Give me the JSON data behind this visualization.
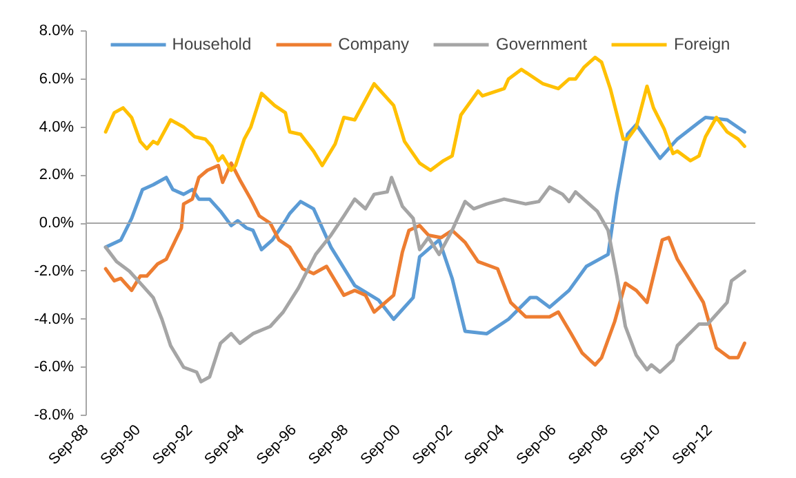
{
  "chart_data": {
    "type": "line",
    "legend": "top",
    "grid": false,
    "line_style": "solid",
    "marker": "none",
    "xlim": [
      "1988-09",
      "2014-06"
    ],
    "xticks": [
      {
        "value": "1988-09",
        "label": "Sep-88"
      },
      {
        "value": "1990-09",
        "label": "Sep-90"
      },
      {
        "value": "1992-09",
        "label": "Sep-92"
      },
      {
        "value": "1994-09",
        "label": "Sep-94"
      },
      {
        "value": "1996-09",
        "label": "Sep-96"
      },
      {
        "value": "1998-09",
        "label": "Sep-98"
      },
      {
        "value": "2000-09",
        "label": "Sep-00"
      },
      {
        "value": "2002-09",
        "label": "Sep-02"
      },
      {
        "value": "2004-09",
        "label": "Sep-04"
      },
      {
        "value": "2006-09",
        "label": "Sep-06"
      },
      {
        "value": "2008-09",
        "label": "Sep-08"
      },
      {
        "value": "2010-09",
        "label": "Sep-10"
      },
      {
        "value": "2012-09",
        "label": "Sep-12"
      }
    ],
    "ylim": [
      -8,
      8
    ],
    "yticks": [
      {
        "value": -8,
        "label": "-8.0%"
      },
      {
        "value": -6,
        "label": "-6.0%"
      },
      {
        "value": -4,
        "label": "-4.0%"
      },
      {
        "value": -2,
        "label": "-2.0%"
      },
      {
        "value": 0,
        "label": "0.0%"
      },
      {
        "value": 2,
        "label": "2.0%"
      },
      {
        "value": 4,
        "label": "4.0%"
      },
      {
        "value": 6,
        "label": "6.0%"
      },
      {
        "value": 8,
        "label": "8.0%"
      }
    ],
    "ref_lines": [
      {
        "axis": "y",
        "value": 0,
        "color": "#a6a6a6"
      }
    ],
    "series": [
      {
        "name": "Household",
        "color": "#5b9bd5",
        "x": [
          "1989-06",
          "1990-01",
          "1990-06",
          "1990-11",
          "1991-04",
          "1991-10",
          "1992-01",
          "1992-06",
          "1992-10",
          "1993-01",
          "1993-06",
          "1993-11",
          "1994-04",
          "1994-07",
          "1994-11",
          "1995-02",
          "1995-06",
          "1995-11",
          "1996-05",
          "1996-07",
          "1996-12",
          "1997-06",
          "1998-02",
          "1999-01",
          "1999-12",
          "2000-07",
          "2001-04",
          "2001-07",
          "2002-04",
          "2002-10",
          "2003-04",
          "2004-02",
          "2004-12",
          "2005-10",
          "2006-01",
          "2006-07",
          "2007-04",
          "2007-12",
          "2008-10",
          "2009-02",
          "2009-07",
          "2009-11",
          "2010-10",
          "2011-06",
          "2012-04",
          "2012-07",
          "2013-05",
          "2014-01"
        ],
        "values": [
          -1.0,
          -0.7,
          0.2,
          1.4,
          1.6,
          1.9,
          1.4,
          1.2,
          1.4,
          1.0,
          1.0,
          0.5,
          -0.1,
          0.1,
          -0.2,
          -0.3,
          -1.1,
          -0.7,
          0.1,
          0.4,
          0.9,
          0.6,
          -1.0,
          -2.6,
          -3.2,
          -4.0,
          -3.1,
          -1.4,
          -0.7,
          -2.3,
          -4.5,
          -4.6,
          -4.0,
          -3.1,
          -3.1,
          -3.5,
          -2.8,
          -1.8,
          -1.3,
          1.2,
          3.7,
          4.1,
          2.7,
          3.5,
          4.2,
          4.4,
          4.3,
          3.8
        ]
      },
      {
        "name": "Company",
        "color": "#ed7d31",
        "x": [
          "1989-06",
          "1989-10",
          "1990-01",
          "1990-06",
          "1990-10",
          "1991-01",
          "1991-06",
          "1991-10",
          "1992-05",
          "1992-06",
          "1992-10",
          "1993-01",
          "1993-05",
          "1993-10",
          "1993-12",
          "1994-04",
          "1994-08",
          "1995-01",
          "1995-05",
          "1995-10",
          "1996-02",
          "1996-07",
          "1997-01",
          "1997-06",
          "1997-12",
          "1998-08",
          "1999-01",
          "1999-06",
          "1999-10",
          "2000-07",
          "2000-11",
          "2001-02",
          "2001-07",
          "2001-11",
          "2002-05",
          "2002-10",
          "2003-04",
          "2003-10",
          "2004-07",
          "2005-01",
          "2005-08",
          "2006-07",
          "2006-11",
          "2007-05",
          "2007-10",
          "2008-04",
          "2008-07",
          "2009-01",
          "2009-06",
          "2009-11",
          "2010-04",
          "2010-11",
          "2011-02",
          "2011-06",
          "2011-12",
          "2012-06",
          "2012-12",
          "2013-06",
          "2013-10",
          "2014-01"
        ],
        "values": [
          -1.9,
          -2.4,
          -2.3,
          -2.8,
          -2.2,
          -2.2,
          -1.7,
          -1.5,
          -0.2,
          0.8,
          1.0,
          1.9,
          2.2,
          2.4,
          1.7,
          2.5,
          1.8,
          1.0,
          0.3,
          0.0,
          -0.7,
          -1.0,
          -1.9,
          -2.1,
          -1.8,
          -3.0,
          -2.8,
          -3.0,
          -3.7,
          -3.0,
          -1.2,
          -0.3,
          -0.1,
          -0.5,
          -0.6,
          -0.3,
          -0.8,
          -1.6,
          -1.9,
          -3.3,
          -3.9,
          -3.9,
          -3.7,
          -4.6,
          -5.4,
          -5.9,
          -5.6,
          -4.1,
          -2.5,
          -2.8,
          -3.3,
          -0.7,
          -0.6,
          -1.5,
          -2.4,
          -3.3,
          -5.2,
          -5.6,
          -5.6,
          -5.0
        ]
      },
      {
        "name": "Government",
        "color": "#a5a5a5",
        "x": [
          "1989-06",
          "1989-11",
          "1990-05",
          "1990-11",
          "1991-04",
          "1991-08",
          "1991-12",
          "1992-06",
          "1992-12",
          "1993-02",
          "1993-06",
          "1993-11",
          "1994-04",
          "1994-08",
          "1995-02",
          "1995-10",
          "1996-04",
          "1996-11",
          "1997-07",
          "1998-02",
          "1998-08",
          "1999-01",
          "1999-06",
          "1999-10",
          "2000-04",
          "2000-06",
          "2000-11",
          "2001-04",
          "2001-07",
          "2001-11",
          "2002-04",
          "2002-10",
          "2003-04",
          "2003-08",
          "2004-02",
          "2004-10",
          "2005-08",
          "2006-02",
          "2006-07",
          "2007-01",
          "2007-04",
          "2007-07",
          "2008-05",
          "2008-10",
          "2009-02",
          "2009-06",
          "2009-11",
          "2010-04",
          "2010-06",
          "2010-10",
          "2011-04",
          "2011-06",
          "2012-04",
          "2012-08",
          "2013-05",
          "2013-07",
          "2014-01"
        ],
        "values": [
          -1.0,
          -1.6,
          -2.0,
          -2.6,
          -3.1,
          -4.0,
          -5.1,
          -6.0,
          -6.2,
          -6.6,
          -6.4,
          -5.0,
          -4.6,
          -5.0,
          -4.6,
          -4.3,
          -3.7,
          -2.7,
          -1.3,
          -0.5,
          0.3,
          1.0,
          0.6,
          1.2,
          1.3,
          1.9,
          0.7,
          0.2,
          -1.1,
          -0.6,
          -1.3,
          -0.3,
          0.9,
          0.6,
          0.8,
          1.0,
          0.8,
          0.9,
          1.5,
          1.2,
          0.9,
          1.3,
          0.5,
          -0.3,
          -2.2,
          -4.3,
          -5.5,
          -6.1,
          -5.9,
          -6.2,
          -5.7,
          -5.1,
          -4.2,
          -4.2,
          -3.3,
          -2.4,
          -2.0
        ]
      },
      {
        "name": "Foreign",
        "color": "#ffc000",
        "x": [
          "1989-06",
          "1989-10",
          "1990-02",
          "1990-06",
          "1990-10",
          "1991-01",
          "1991-04",
          "1991-06",
          "1991-12",
          "1992-04",
          "1992-06",
          "1992-11",
          "1993-04",
          "1993-07",
          "1993-10",
          "1993-12",
          "1994-04",
          "1994-06",
          "1994-10",
          "1995-01",
          "1995-06",
          "1995-12",
          "1996-05",
          "1996-07",
          "1996-12",
          "1997-06",
          "1997-10",
          "1998-04",
          "1998-08",
          "1999-01",
          "1999-10",
          "2000-07",
          "2000-12",
          "2001-07",
          "2001-12",
          "2002-06",
          "2002-10",
          "2003-02",
          "2003-10",
          "2003-12",
          "2004-10",
          "2004-12",
          "2005-06",
          "2006-04",
          "2006-11",
          "2007-04",
          "2007-07",
          "2007-11",
          "2008-04",
          "2008-07",
          "2008-11",
          "2009-05",
          "2009-07",
          "2009-11",
          "2010-04",
          "2010-07",
          "2010-12",
          "2011-04",
          "2011-06",
          "2011-12",
          "2012-04",
          "2012-07",
          "2012-12",
          "2013-05",
          "2013-10",
          "2014-01"
        ],
        "values": [
          3.8,
          4.6,
          4.8,
          4.4,
          3.4,
          3.1,
          3.4,
          3.3,
          4.3,
          4.1,
          4.0,
          3.6,
          3.5,
          3.2,
          2.6,
          2.8,
          2.2,
          2.4,
          3.5,
          4.0,
          5.4,
          4.9,
          4.6,
          3.8,
          3.7,
          3.0,
          2.4,
          3.3,
          4.4,
          4.3,
          5.8,
          4.9,
          3.4,
          2.5,
          2.2,
          2.6,
          2.8,
          4.5,
          5.5,
          5.3,
          5.6,
          6.0,
          6.4,
          5.8,
          5.6,
          6.0,
          6.0,
          6.5,
          6.9,
          6.7,
          5.6,
          3.5,
          3.5,
          4.0,
          5.7,
          4.8,
          3.9,
          2.9,
          3.0,
          2.6,
          2.8,
          3.6,
          4.4,
          3.8,
          3.5,
          3.2
        ]
      }
    ]
  }
}
